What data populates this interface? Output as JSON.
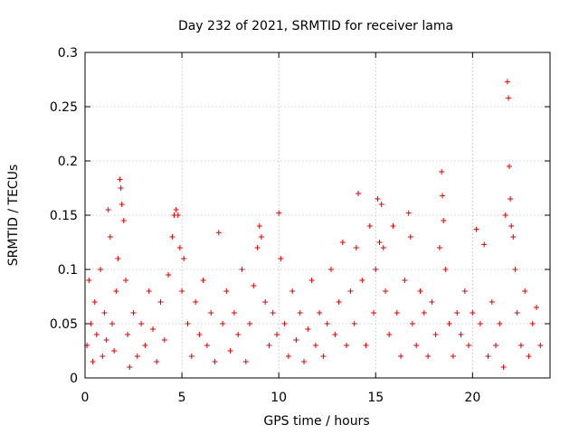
{
  "chart_data": {
    "type": "scatter",
    "title": "Day 232 of 2021, SRMTID for receiver lama",
    "xlabel": "GPS time / hours",
    "ylabel": "SRMTID / TECUs",
    "xlim": [
      0,
      24
    ],
    "ylim": [
      0,
      0.3
    ],
    "x_ticks": [
      0,
      5,
      10,
      15,
      20
    ],
    "x_tick_labels": [
      "0",
      "5",
      "10",
      "15",
      "20"
    ],
    "y_ticks": [
      0,
      0.05,
      0.1,
      0.15,
      0.2,
      0.25,
      0.3
    ],
    "y_tick_labels": [
      "0",
      "0.05",
      "0.1",
      "0.15",
      "0.2",
      "0.25",
      "0.3"
    ],
    "grid": true,
    "marker": "plus",
    "color": "#e00000",
    "series": [
      {
        "name": "SRMTID",
        "points": [
          [
            0.1,
            0.03
          ],
          [
            0.2,
            0.09
          ],
          [
            0.3,
            0.05
          ],
          [
            0.4,
            0.015
          ],
          [
            0.5,
            0.07
          ],
          [
            0.6,
            0.04
          ],
          [
            0.8,
            0.1
          ],
          [
            0.9,
            0.02
          ],
          [
            1.0,
            0.06
          ],
          [
            1.1,
            0.035
          ],
          [
            1.2,
            0.155
          ],
          [
            1.3,
            0.13
          ],
          [
            1.4,
            0.05
          ],
          [
            1.5,
            0.025
          ],
          [
            1.6,
            0.08
          ],
          [
            1.7,
            0.11
          ],
          [
            1.8,
            0.183
          ],
          [
            1.85,
            0.175
          ],
          [
            1.9,
            0.16
          ],
          [
            2.0,
            0.145
          ],
          [
            2.1,
            0.09
          ],
          [
            2.2,
            0.04
          ],
          [
            2.3,
            0.01
          ],
          [
            2.5,
            0.06
          ],
          [
            2.7,
            0.02
          ],
          [
            2.9,
            0.05
          ],
          [
            3.1,
            0.03
          ],
          [
            3.3,
            0.08
          ],
          [
            3.5,
            0.045
          ],
          [
            3.7,
            0.015
          ],
          [
            3.9,
            0.07
          ],
          [
            4.1,
            0.035
          ],
          [
            4.3,
            0.095
          ],
          [
            4.5,
            0.13
          ],
          [
            4.6,
            0.15
          ],
          [
            4.7,
            0.155
          ],
          [
            4.8,
            0.15
          ],
          [
            4.9,
            0.12
          ],
          [
            5.0,
            0.08
          ],
          [
            5.1,
            0.11
          ],
          [
            5.3,
            0.05
          ],
          [
            5.5,
            0.02
          ],
          [
            5.7,
            0.07
          ],
          [
            5.9,
            0.04
          ],
          [
            6.1,
            0.09
          ],
          [
            6.3,
            0.03
          ],
          [
            6.5,
            0.06
          ],
          [
            6.7,
            0.015
          ],
          [
            6.9,
            0.134
          ],
          [
            7.1,
            0.05
          ],
          [
            7.3,
            0.08
          ],
          [
            7.5,
            0.025
          ],
          [
            7.7,
            0.06
          ],
          [
            7.9,
            0.04
          ],
          [
            8.1,
            0.1
          ],
          [
            8.3,
            0.015
          ],
          [
            8.5,
            0.05
          ],
          [
            8.7,
            0.085
          ],
          [
            8.9,
            0.12
          ],
          [
            9.0,
            0.14
          ],
          [
            9.1,
            0.13
          ],
          [
            9.3,
            0.07
          ],
          [
            9.5,
            0.03
          ],
          [
            9.7,
            0.06
          ],
          [
            9.9,
            0.04
          ],
          [
            10.0,
            0.152
          ],
          [
            10.1,
            0.11
          ],
          [
            10.3,
            0.05
          ],
          [
            10.5,
            0.02
          ],
          [
            10.7,
            0.08
          ],
          [
            10.9,
            0.035
          ],
          [
            11.1,
            0.06
          ],
          [
            11.3,
            0.015
          ],
          [
            11.5,
            0.045
          ],
          [
            11.7,
            0.09
          ],
          [
            11.9,
            0.03
          ],
          [
            12.1,
            0.06
          ],
          [
            12.3,
            0.02
          ],
          [
            12.5,
            0.05
          ],
          [
            12.7,
            0.1
          ],
          [
            12.9,
            0.04
          ],
          [
            13.1,
            0.07
          ],
          [
            13.3,
            0.125
          ],
          [
            13.5,
            0.03
          ],
          [
            13.7,
            0.08
          ],
          [
            13.9,
            0.05
          ],
          [
            14.0,
            0.12
          ],
          [
            14.1,
            0.17
          ],
          [
            14.3,
            0.09
          ],
          [
            14.5,
            0.03
          ],
          [
            14.7,
            0.14
          ],
          [
            14.9,
            0.06
          ],
          [
            15.0,
            0.1
          ],
          [
            15.1,
            0.165
          ],
          [
            15.2,
            0.125
          ],
          [
            15.3,
            0.16
          ],
          [
            15.4,
            0.12
          ],
          [
            15.5,
            0.08
          ],
          [
            15.7,
            0.04
          ],
          [
            15.9,
            0.14
          ],
          [
            16.1,
            0.06
          ],
          [
            16.3,
            0.02
          ],
          [
            16.5,
            0.09
          ],
          [
            16.7,
            0.152
          ],
          [
            16.8,
            0.13
          ],
          [
            16.9,
            0.05
          ],
          [
            17.1,
            0.03
          ],
          [
            17.3,
            0.08
          ],
          [
            17.5,
            0.06
          ],
          [
            17.7,
            0.02
          ],
          [
            17.9,
            0.07
          ],
          [
            18.1,
            0.04
          ],
          [
            18.3,
            0.12
          ],
          [
            18.4,
            0.19
          ],
          [
            18.45,
            0.168
          ],
          [
            18.5,
            0.145
          ],
          [
            18.6,
            0.1
          ],
          [
            18.8,
            0.05
          ],
          [
            19.0,
            0.02
          ],
          [
            19.2,
            0.06
          ],
          [
            19.4,
            0.04
          ],
          [
            19.6,
            0.08
          ],
          [
            19.8,
            0.03
          ],
          [
            20.0,
            0.06
          ],
          [
            20.2,
            0.137
          ],
          [
            20.4,
            0.05
          ],
          [
            20.6,
            0.123
          ],
          [
            20.8,
            0.02
          ],
          [
            21.0,
            0.07
          ],
          [
            21.2,
            0.03
          ],
          [
            21.4,
            0.05
          ],
          [
            21.6,
            0.01
          ],
          [
            21.7,
            0.15
          ],
          [
            21.8,
            0.273
          ],
          [
            21.85,
            0.258
          ],
          [
            21.9,
            0.195
          ],
          [
            21.95,
            0.165
          ],
          [
            22.0,
            0.14
          ],
          [
            22.1,
            0.13
          ],
          [
            22.2,
            0.1
          ],
          [
            22.3,
            0.06
          ],
          [
            22.5,
            0.03
          ],
          [
            22.7,
            0.08
          ],
          [
            22.9,
            0.02
          ],
          [
            23.1,
            0.05
          ],
          [
            23.3,
            0.065
          ],
          [
            23.5,
            0.03
          ]
        ]
      }
    ]
  }
}
